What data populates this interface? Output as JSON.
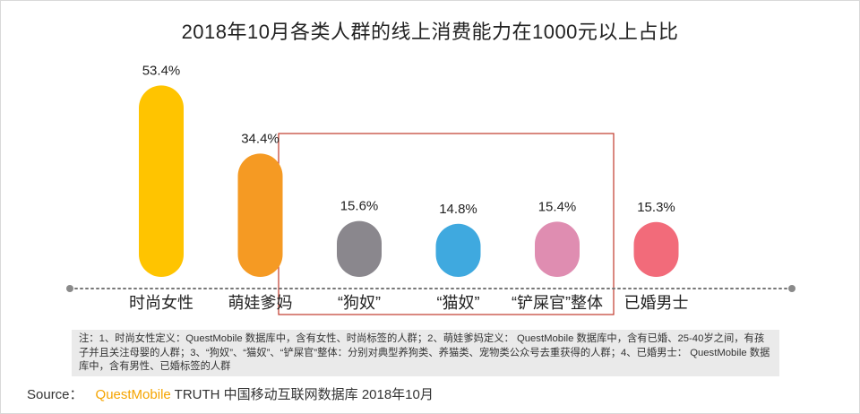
{
  "chart_data": {
    "type": "bar",
    "title": "2018年10月各类人群的线上消费能力在1000元以上占比",
    "categories": [
      "时尚女性",
      "萌娃爹妈",
      "“狗奴”",
      "“猫奴”",
      "“铲屎官”整体",
      "已婚男士"
    ],
    "values": [
      53.4,
      34.4,
      15.6,
      14.8,
      15.4,
      15.3
    ],
    "value_labels": [
      "53.4%",
      "34.4%",
      "15.6%",
      "14.8%",
      "15.4%",
      "15.3%"
    ],
    "colors": [
      "#ffc400",
      "#f59a23",
      "#8a878d",
      "#3fa9df",
      "#df8db1",
      "#f26b7a"
    ],
    "unit": "%",
    "ylim": [
      0,
      60
    ],
    "highlight": {
      "categories": [
        "“狗奴”",
        "“猫奴”",
        "“铲屎官”整体"
      ],
      "color": "#c0392b"
    },
    "xlabel": "",
    "ylabel": "",
    "grid": false
  },
  "note": {
    "text": "注：1、时尚女性定义：QuestMobile 数据库中，含有女性、时尚标签的人群；2、萌娃爹妈定义： QuestMobile 数据库中，含有已婚、25-40岁之间，有孩子并且关注母婴的人群；3、“狗奴”、“猫奴”、“铲屎官”整体：分别对典型养狗类、养猫类、宠物类公众号去重获得的人群；4、已婚男士： QuestMobile 数据库中，含有男性、已婚标签的人群"
  },
  "source": {
    "label": "Source：",
    "brand": "QuestMobile",
    "rest": "TRUTH 中国移动互联网数据库 2018年10月"
  }
}
